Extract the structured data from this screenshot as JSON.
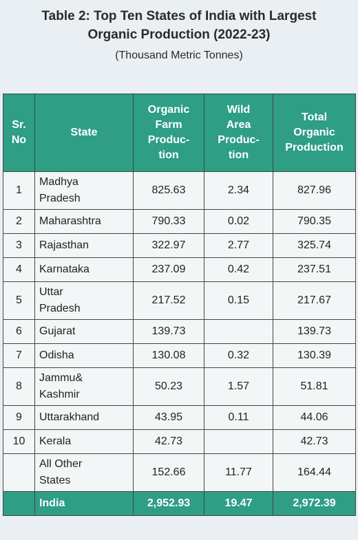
{
  "title_line1": "Table 2: Top Ten States of India with Largest",
  "title_line2": "Organic Production (2022-23)",
  "subtitle": "(Thousand Metric Tonnes)",
  "headers": {
    "sr_line1": "Sr.",
    "sr_line2": "No",
    "state": "State",
    "farm": [
      "Organic",
      "Farm",
      "Produc-",
      "tion"
    ],
    "wild": [
      "Wild",
      "Area",
      "Produc-",
      "tion"
    ],
    "total": [
      "Total",
      "Organic",
      "Production"
    ]
  },
  "rows": [
    {
      "sr": "1",
      "state": [
        "Madhya",
        "Pradesh"
      ],
      "farm": "825.63",
      "wild": "2.34",
      "total": "827.96"
    },
    {
      "sr": "2",
      "state": [
        "Maharashtra"
      ],
      "farm": "790.33",
      "wild": "0.02",
      "total": "790.35"
    },
    {
      "sr": "3",
      "state": [
        "Rajasthan"
      ],
      "farm": "322.97",
      "wild": "2.77",
      "total": "325.74"
    },
    {
      "sr": "4",
      "state": [
        "Karnataka"
      ],
      "farm": "237.09",
      "wild": "0.42",
      "total": "237.51"
    },
    {
      "sr": "5",
      "state": [
        "Uttar",
        "Pradesh"
      ],
      "farm": "217.52",
      "wild": "0.15",
      "total": "217.67"
    },
    {
      "sr": "6",
      "state": [
        "Gujarat"
      ],
      "farm": "139.73",
      "wild": "",
      "total": "139.73"
    },
    {
      "sr": "7",
      "state": [
        "Odisha"
      ],
      "farm": "130.08",
      "wild": "0.32",
      "total": "130.39"
    },
    {
      "sr": "8",
      "state": [
        "Jammu&",
        "Kashmir"
      ],
      "farm": "50.23",
      "wild": "1.57",
      "total": "51.81"
    },
    {
      "sr": "9",
      "state": [
        "Uttarakhand"
      ],
      "farm": "43.95",
      "wild": "0.11",
      "total": "44.06"
    },
    {
      "sr": "10",
      "state": [
        "Kerala"
      ],
      "farm": "42.73",
      "wild": "",
      "total": "42.73"
    },
    {
      "sr": "",
      "state": [
        "All Other",
        "States"
      ],
      "farm": "152.66",
      "wild": "11.77",
      "total": "164.44"
    }
  ],
  "total_row": {
    "label": "India",
    "farm": "2,952.93",
    "wild": "19.47",
    "total": "2,972.39"
  },
  "colors": {
    "header_bg": "#2e9e85",
    "page_bg": "#e9eff2"
  }
}
